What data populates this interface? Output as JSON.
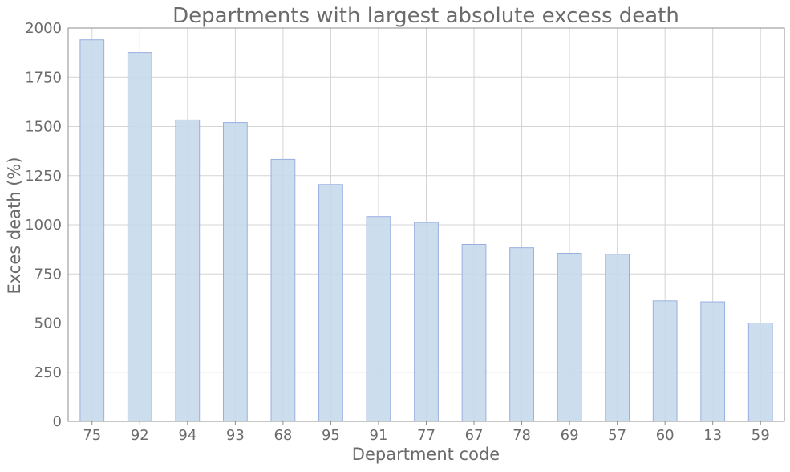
{
  "chart_data": {
    "type": "bar",
    "title": "Departments with largest absolute excess death",
    "xlabel": "Department code",
    "ylabel": "Exces death (%)",
    "categories": [
      "75",
      "92",
      "94",
      "93",
      "68",
      "95",
      "91",
      "77",
      "67",
      "78",
      "69",
      "57",
      "60",
      "13",
      "59"
    ],
    "values": [
      1940,
      1875,
      1533,
      1520,
      1333,
      1205,
      1042,
      1012,
      900,
      883,
      855,
      850,
      613,
      608,
      500
    ],
    "ylim": [
      0,
      2000
    ],
    "yticks": [
      0,
      250,
      500,
      750,
      1000,
      1250,
      1500,
      1750,
      2000
    ],
    "ytick_labels": [
      "0",
      "250",
      "500",
      "750",
      "1000",
      "1250",
      "1500",
      "1750",
      "2000"
    ],
    "grid": true,
    "bar_fill": "#c6d9ec",
    "bar_edge": "#9aaee0"
  }
}
